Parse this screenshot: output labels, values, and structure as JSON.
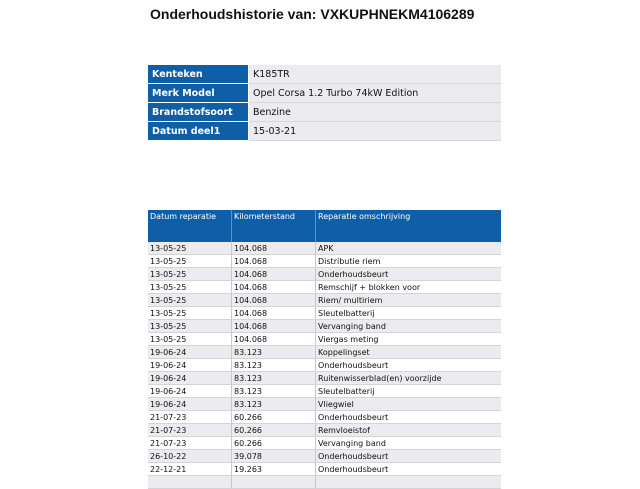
{
  "title": "Onderhoudshistorie van: VXKUPHNEKM4106289",
  "info": [
    {
      "label": "Kenteken",
      "value": "K185TR"
    },
    {
      "label": "Merk Model",
      "value": "Opel Corsa 1.2 Turbo 74kW Edition"
    },
    {
      "label": "Brandstofsoort",
      "value": "Benzine"
    },
    {
      "label": "Datum deel1",
      "value": "15-03-21"
    }
  ],
  "repairs": {
    "headers": [
      "Datum reparatie",
      "Kilometerstand",
      "Reparatie omschrijving"
    ],
    "rows": [
      [
        "13-05-25",
        "104.068",
        "APK"
      ],
      [
        "13-05-25",
        "104.068",
        "Distributie riem"
      ],
      [
        "13-05-25",
        "104.068",
        "Onderhoudsbeurt"
      ],
      [
        "13-05-25",
        "104.068",
        "Remschijf + blokken voor"
      ],
      [
        "13-05-25",
        "104.068",
        "Riem/ multiriem"
      ],
      [
        "13-05-25",
        "104.068",
        "Sleutelbatterij"
      ],
      [
        "13-05-25",
        "104.068",
        "Vervanging band"
      ],
      [
        "13-05-25",
        "104.068",
        "Viergas meting"
      ],
      [
        "19-06-24",
        "83.123",
        "Koppelingset"
      ],
      [
        "19-06-24",
        "83.123",
        "Onderhoudsbeurt"
      ],
      [
        "19-06-24",
        "83.123",
        "Ruitenwisserblad(en) voorzijde"
      ],
      [
        "19-06-24",
        "83.123",
        "Sleutelbatterij"
      ],
      [
        "19-06-24",
        "83.123",
        "Vliegwiel"
      ],
      [
        "21-07-23",
        "60.266",
        "Onderhoudsbeurt"
      ],
      [
        "21-07-23",
        "60.266",
        "Remvloeistof"
      ],
      [
        "21-07-23",
        "60.266",
        "Vervanging band"
      ],
      [
        "26-10-22",
        "39.078",
        "Onderhoudsbeurt"
      ],
      [
        "22-12-21",
        "19.263",
        "Onderhoudsbeurt"
      ],
      [
        "",
        "",
        ""
      ]
    ]
  }
}
